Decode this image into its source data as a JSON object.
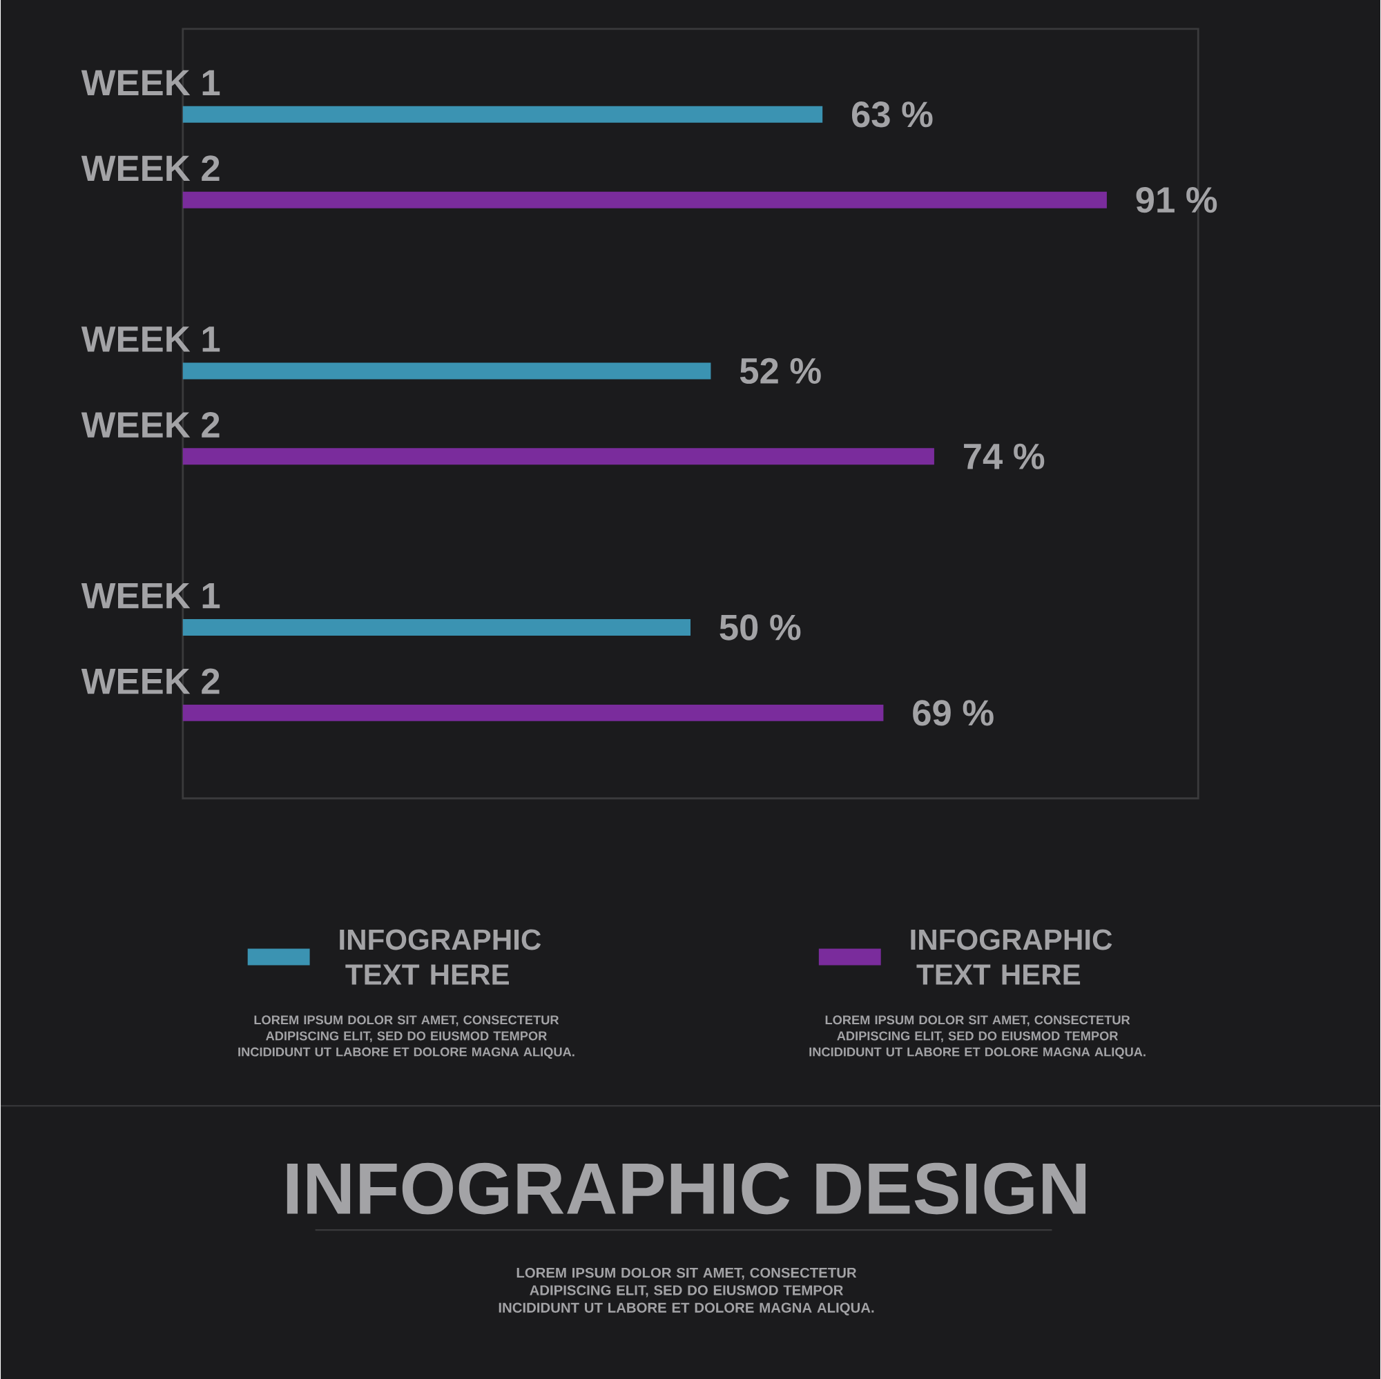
{
  "chart_data": {
    "type": "bar",
    "orientation": "horizontal",
    "title": "INFOGRAPHIC DESIGN",
    "categories": [
      "WEEK 1",
      "WEEK 2",
      "WEEK 1",
      "WEEK 2",
      "WEEK 1",
      "WEEK 2"
    ],
    "xlim": [
      0,
      100
    ],
    "series": [
      {
        "name": "INFOGRAPHIC TEXT HERE",
        "color": "#3b93b2",
        "values": [
          63,
          null,
          52,
          null,
          50,
          null
        ],
        "value_labels": [
          "63 %",
          null,
          "52 %",
          null,
          "50 %",
          null
        ]
      },
      {
        "name": "INFOGRAPHIC TEXT HERE",
        "color": "#7a2c9c",
        "values": [
          null,
          91,
          null,
          74,
          null,
          69
        ],
        "value_labels": [
          null,
          "91 %",
          null,
          "74 %",
          null,
          "69 %"
        ]
      }
    ],
    "legend": "bottom",
    "annotations": [
      "LOREM IPSUM DOLOR SIT AMET, CONSECTETUR ADIPISCING ELIT, SED DO EIUSMOD TEMPOR INCIDIDUNT UT LABORE ET DOLORE MAGNA ALIQUA.",
      "LOREM IPSUM DOLOR SIT AMET, CONSECTETUR ADIPISCING ELIT, SED DO EIUSMOD TEMPOR INCIDIDUNT UT LABORE ET DOLORE MAGNA ALIQUA.",
      "LOREM IPSUM DOLOR SIT AMET, CONSECTETUR ADIPISCING ELIT, SED DO EIUSMOD TEMPOR INCIDIDUNT UT LABORE ET DOLORE MAGNA ALIQUA."
    ]
  }
}
